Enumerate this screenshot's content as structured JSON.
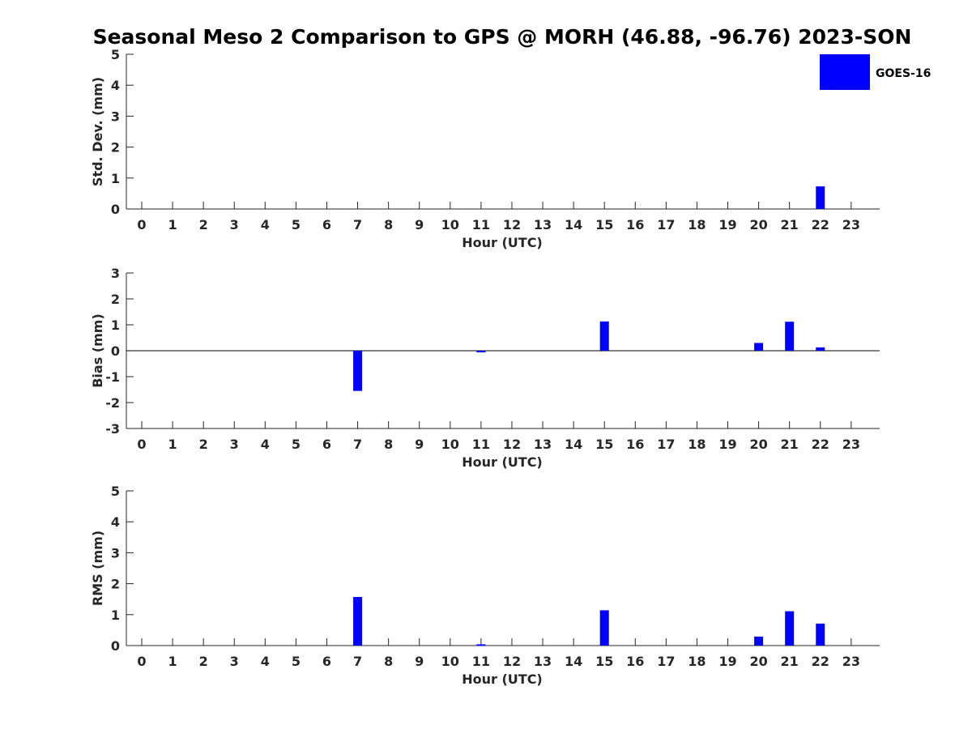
{
  "title": "Seasonal Meso 2 Comparison to GPS @ MORH (46.88, -96.76) 2023-SON",
  "legend": {
    "label": "GOES-16",
    "color": "#0000ff"
  },
  "chart_data": [
    {
      "type": "bar",
      "id": "std",
      "xlabel": "Hour (UTC)",
      "ylabel": "Std. Dev. (mm)",
      "ylim": [
        0,
        5
      ],
      "yticks": [
        0,
        1,
        2,
        3,
        4,
        5
      ],
      "categories": [
        "0",
        "1",
        "2",
        "3",
        "4",
        "5",
        "6",
        "7",
        "8",
        "9",
        "10",
        "11",
        "12",
        "13",
        "14",
        "15",
        "16",
        "17",
        "18",
        "19",
        "20",
        "21",
        "22",
        "23"
      ],
      "series": [
        {
          "name": "GOES-16",
          "color": "#0000ff",
          "values": [
            0,
            0,
            0,
            0,
            0,
            0,
            0,
            0,
            0,
            0,
            0,
            0,
            0,
            0,
            0,
            0,
            0,
            0,
            0,
            0,
            0,
            0,
            0.73,
            0
          ]
        }
      ],
      "zero_line": false
    },
    {
      "type": "bar",
      "id": "bias",
      "xlabel": "Hour (UTC)",
      "ylabel": "Bias (mm)",
      "ylim": [
        -3,
        3
      ],
      "yticks": [
        -3,
        -2,
        -1,
        0,
        1,
        2,
        3
      ],
      "categories": [
        "0",
        "1",
        "2",
        "3",
        "4",
        "5",
        "6",
        "7",
        "8",
        "9",
        "10",
        "11",
        "12",
        "13",
        "14",
        "15",
        "16",
        "17",
        "18",
        "19",
        "20",
        "21",
        "22",
        "23"
      ],
      "series": [
        {
          "name": "GOES-16",
          "color": "#0000ff",
          "values": [
            0,
            0,
            0,
            0,
            0,
            0,
            0,
            -1.55,
            0,
            0,
            0,
            -0.05,
            0,
            0,
            0,
            1.13,
            0,
            0,
            0,
            0,
            0.3,
            1.12,
            0.13,
            0
          ]
        }
      ],
      "zero_line": true
    },
    {
      "type": "bar",
      "id": "rms",
      "xlabel": "Hour (UTC)",
      "ylabel": "RMS (mm)",
      "ylim": [
        0,
        5
      ],
      "yticks": [
        0,
        1,
        2,
        3,
        4,
        5
      ],
      "categories": [
        "0",
        "1",
        "2",
        "3",
        "4",
        "5",
        "6",
        "7",
        "8",
        "9",
        "10",
        "11",
        "12",
        "13",
        "14",
        "15",
        "16",
        "17",
        "18",
        "19",
        "20",
        "21",
        "22",
        "23"
      ],
      "series": [
        {
          "name": "GOES-16",
          "color": "#0000ff",
          "values": [
            0,
            0,
            0,
            0,
            0,
            0,
            0,
            1.57,
            0,
            0,
            0,
            0.04,
            0,
            0,
            0,
            1.14,
            0,
            0,
            0,
            0,
            0.29,
            1.11,
            0.71,
            0
          ]
        }
      ],
      "zero_line": false
    }
  ]
}
